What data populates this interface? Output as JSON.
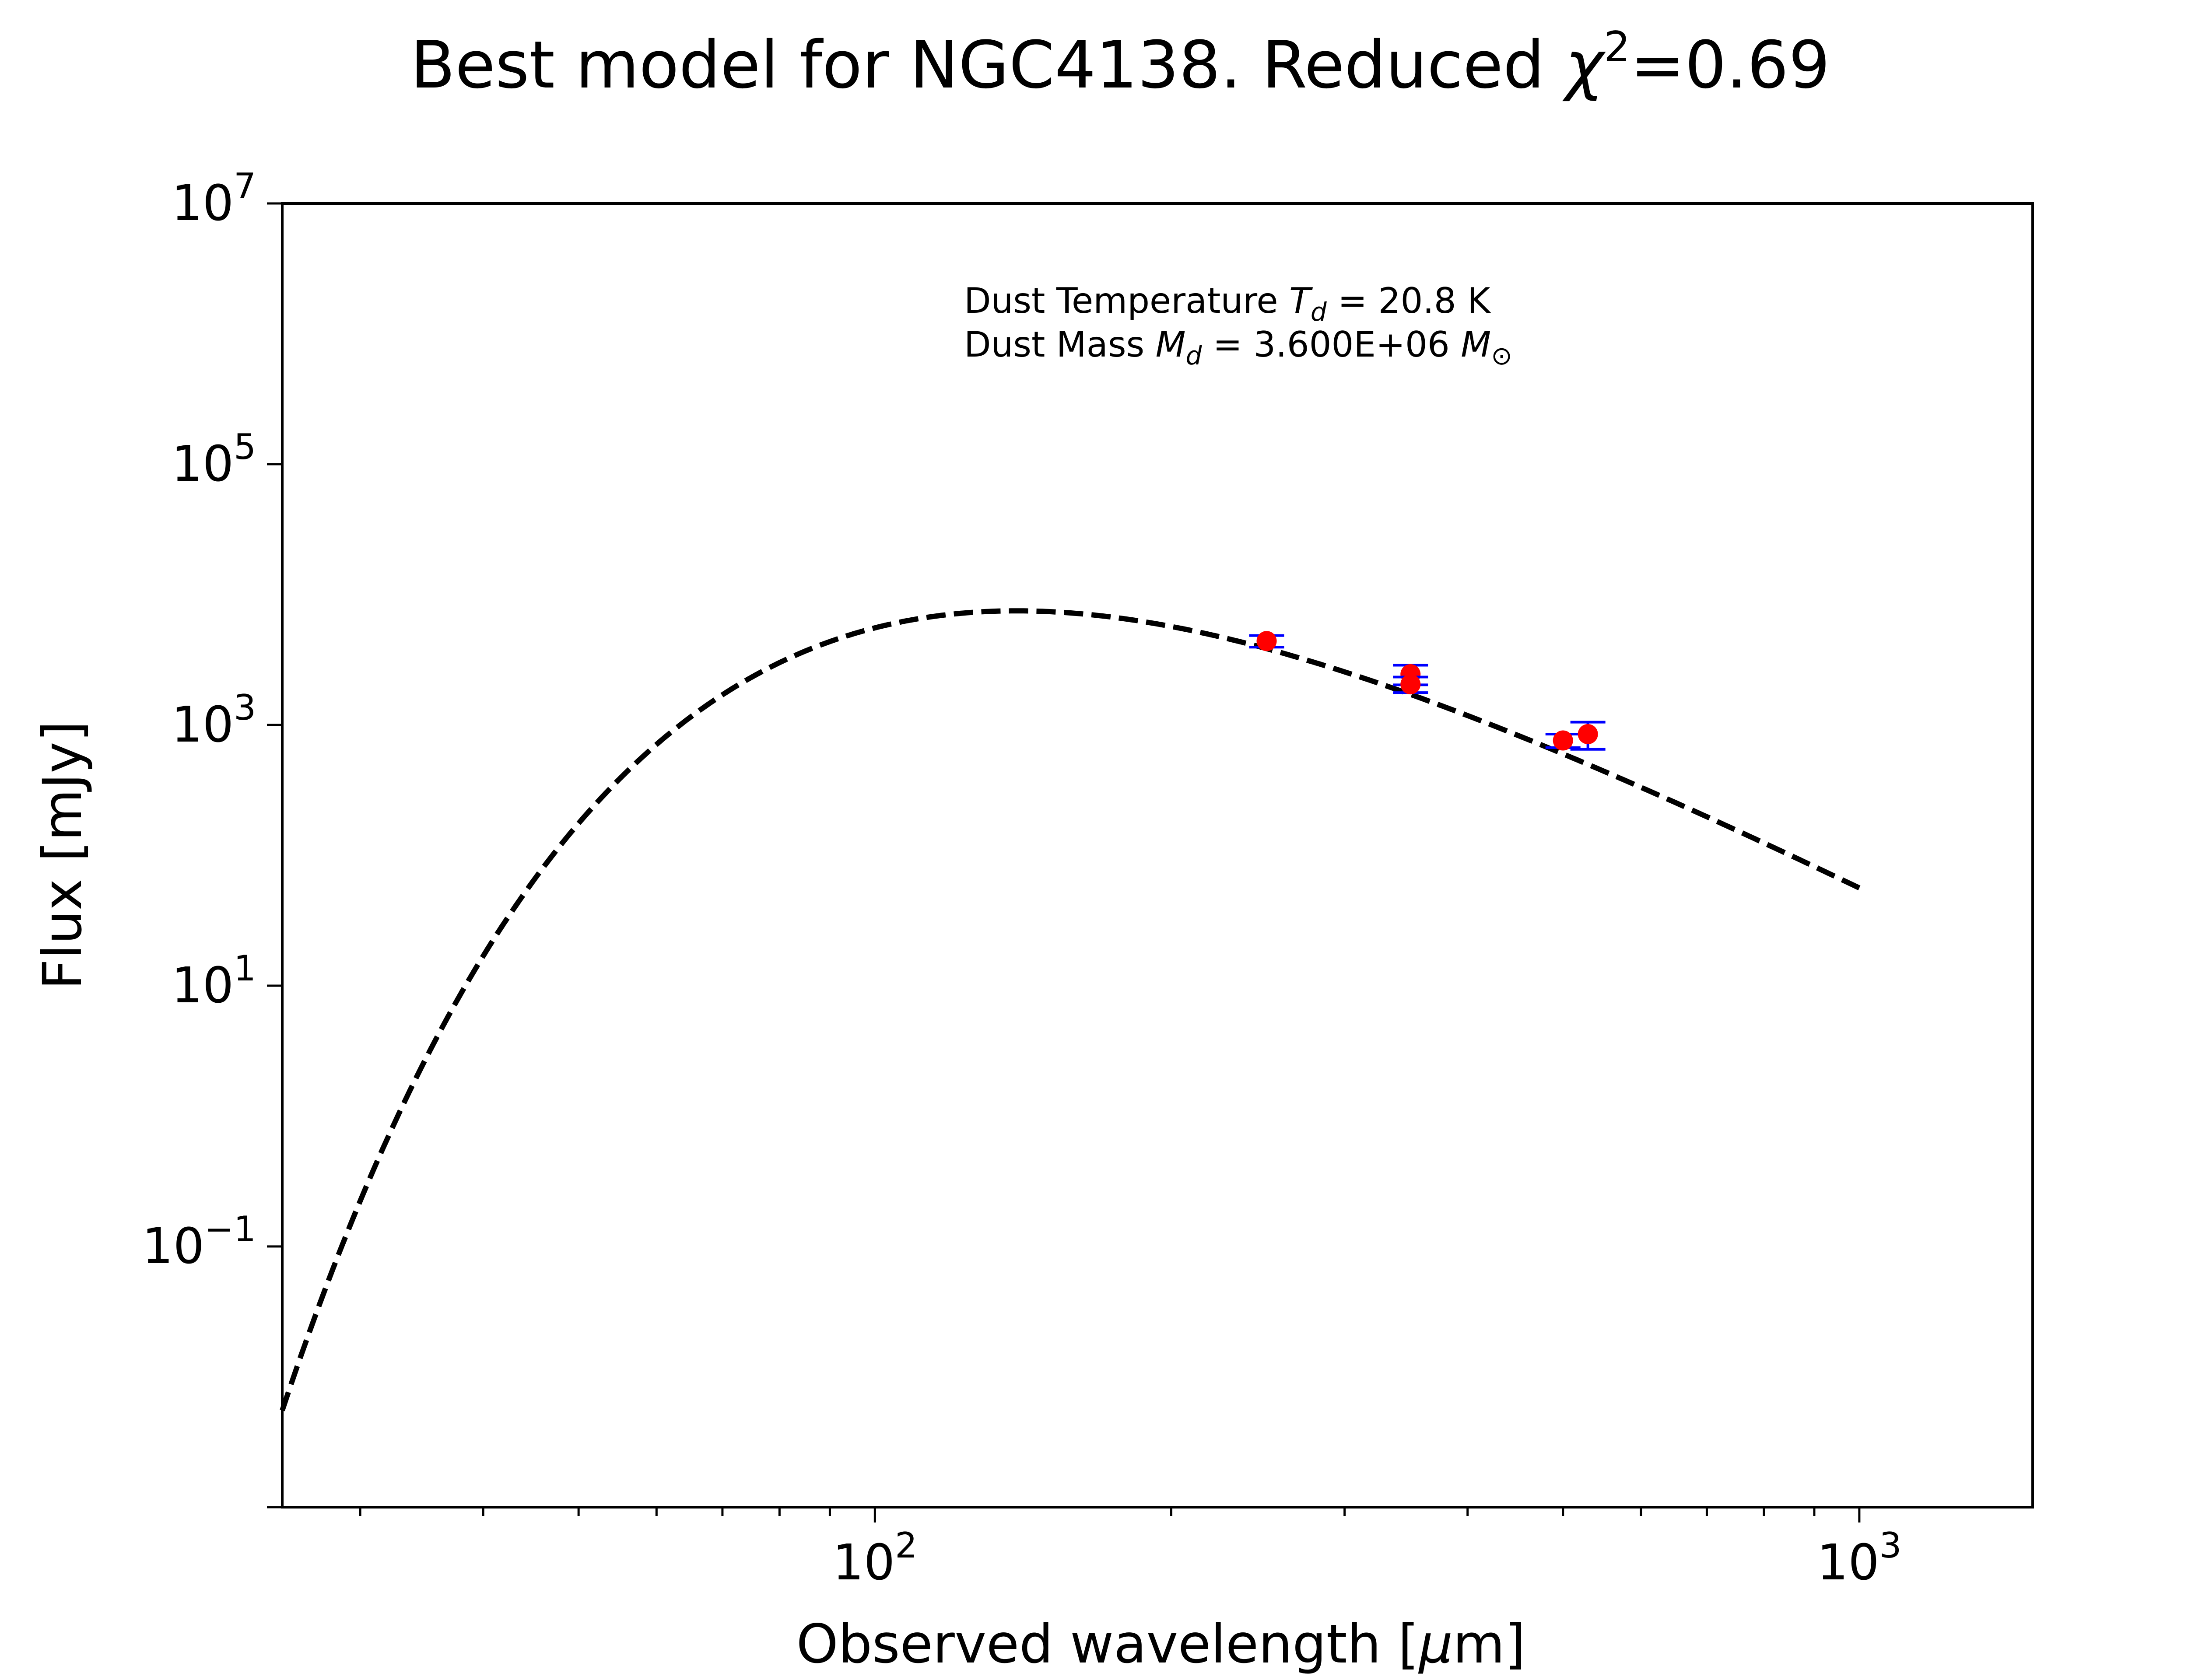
{
  "chart_data": {
    "type": "scatter",
    "title": "Best model for NGC4138. Reduced χ²=0.69",
    "title_parts": {
      "pre": "Best model for NGC4138. Reduced ",
      "chi": "χ",
      "sup": "2",
      "post": "=0.69"
    },
    "xlabel": "Observed wavelength [μm]",
    "ylabel": "Flux [mJy]",
    "xscale": "log",
    "yscale": "log",
    "xlim": [
      25,
      1500
    ],
    "ylim": [
      0.001,
      10000000
    ],
    "grid": false,
    "legend": "none",
    "x_ticks": [
      {
        "value": 100,
        "base": "10",
        "exp": "2"
      },
      {
        "value": 1000,
        "base": "10",
        "exp": "3"
      }
    ],
    "y_ticks": [
      {
        "value": 0.1,
        "base": "10",
        "exp": "−1"
      },
      {
        "value": 10,
        "base": "10",
        "exp": "1"
      },
      {
        "value": 1000,
        "base": "10",
        "exp": "3"
      },
      {
        "value": 100000,
        "base": "10",
        "exp": "5"
      },
      {
        "value": 10000000,
        "base": "10",
        "exp": "7"
      }
    ],
    "annotations": [
      {
        "text": "Dust Temperature T_d = 20.8 K"
      },
      {
        "text": "Dust Mass M_d = 3.600E+06 M_⊙"
      }
    ],
    "model": {
      "type": "modified-blackbody",
      "T_dust_K": 20.8,
      "x_range": [
        25,
        1000
      ],
      "peak_wavelength": 145,
      "peak_flux": 7500
    },
    "series": [
      {
        "points": [
          {
            "x": 250,
            "y": 4400,
            "yerr": 450
          },
          {
            "x": 350,
            "y": 2450,
            "yerr": 420
          },
          {
            "x": 350,
            "y": 2050,
            "yerr": 280
          },
          {
            "x": 500,
            "y": 760,
            "yerr": 90
          },
          {
            "x": 530,
            "y": 850,
            "yerr": 200
          }
        ]
      }
    ]
  },
  "colors": {
    "model_line": "#000000",
    "points": "#ff0000",
    "errorbars": "#0000ff",
    "axes": "#000000"
  }
}
